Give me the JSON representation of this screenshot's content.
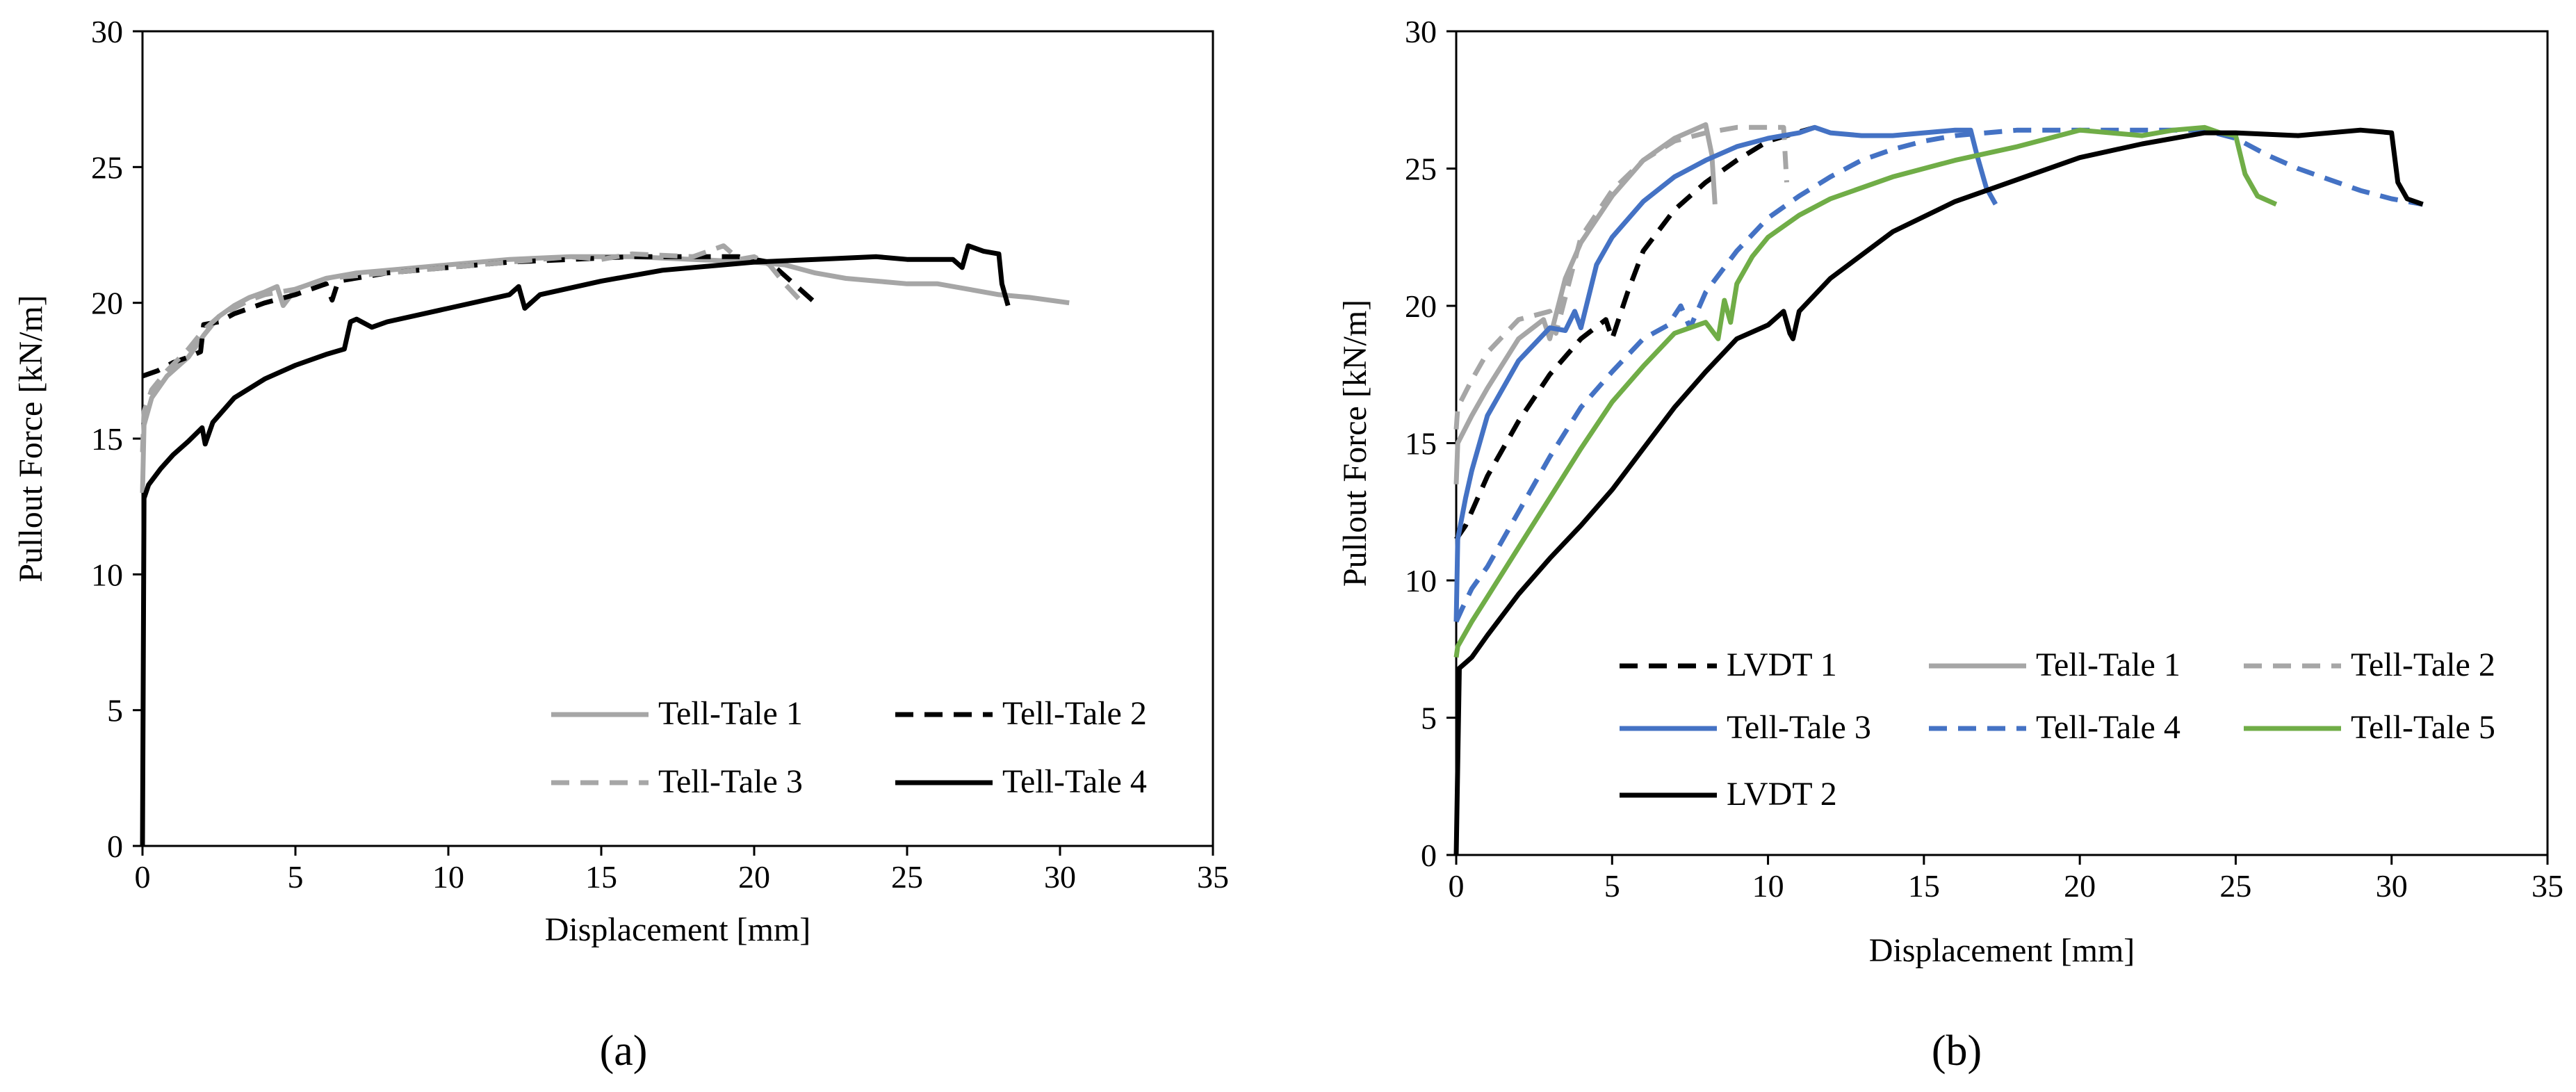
{
  "chart_data": [
    {
      "type": "line",
      "panel_label": "(a)",
      "xlabel": "Displacement [mm]",
      "ylabel": "Pullout Force [kN/m]",
      "xlim": [
        0,
        35
      ],
      "ylim": [
        0,
        30
      ],
      "xticks": [
        0,
        5,
        10,
        15,
        20,
        25,
        30,
        35
      ],
      "yticks": [
        0,
        5,
        10,
        15,
        20,
        25,
        30
      ],
      "legend_position": "bottom-right",
      "legend_columns": 2,
      "series": [
        {
          "name": "Tell-Tale 1",
          "color": "#a6a6a6",
          "dash": "solid",
          "x": [
            0,
            0.05,
            0.3,
            0.8,
            1.5,
            2,
            2.5,
            3,
            3.5,
            4,
            4.4,
            4.6,
            5,
            6,
            7,
            8,
            10,
            12,
            14,
            16,
            18,
            20,
            21,
            22,
            23,
            25,
            26,
            27,
            28,
            29,
            30.3
          ],
          "y": [
            13,
            15.5,
            16.5,
            17.3,
            18,
            18.8,
            19.5,
            19.9,
            20.2,
            20.4,
            20.6,
            19.9,
            20.5,
            20.9,
            21.1,
            21.2,
            21.4,
            21.6,
            21.7,
            21.7,
            21.6,
            21.5,
            21.4,
            21.1,
            20.9,
            20.7,
            20.7,
            20.5,
            20.3,
            20.2,
            20
          ]
        },
        {
          "name": "Tell-Tale 2",
          "color": "#000000",
          "dash": "dashed",
          "x": [
            0,
            0.5,
            1,
            1.5,
            1.9,
            2,
            2.5,
            3,
            4,
            5,
            6,
            6.2,
            6.4,
            8,
            10,
            12,
            14,
            16,
            18,
            19.5,
            20.5,
            21.5,
            22
          ],
          "y": [
            17.3,
            17.5,
            17.8,
            18,
            18.2,
            19.2,
            19.3,
            19.6,
            20,
            20.3,
            20.7,
            20.1,
            20.8,
            21.1,
            21.3,
            21.5,
            21.6,
            21.7,
            21.7,
            21.7,
            21.5,
            20.5,
            20
          ]
        },
        {
          "name": "Tell-Tale 3",
          "color": "#a6a6a6",
          "dash": "dashed",
          "x": [
            0,
            0.05,
            0.3,
            0.8,
            1.5,
            2,
            2.6,
            3,
            3.5,
            4,
            5,
            6,
            8,
            10,
            12,
            14,
            15,
            16,
            18,
            19,
            19.5,
            20,
            20.5,
            21,
            21.5
          ],
          "y": [
            14.5,
            16,
            16.8,
            17.5,
            18.3,
            19,
            19.6,
            19.8,
            20.1,
            20.3,
            20.5,
            20.9,
            21.1,
            21.3,
            21.5,
            21.7,
            21.6,
            21.8,
            21.7,
            22.1,
            21.6,
            21.7,
            21.4,
            20.7,
            20.1
          ]
        },
        {
          "name": "Tell-Tale 4",
          "color": "#000000",
          "dash": "solid",
          "x": [
            0,
            0.05,
            0.2,
            0.6,
            1,
            1.5,
            1.95,
            2.05,
            2.3,
            3,
            4,
            5,
            6,
            6.6,
            6.8,
            7,
            7.5,
            8,
            10,
            12,
            12.3,
            12.5,
            13,
            15,
            17,
            19,
            20,
            22,
            24,
            25,
            26,
            26.5,
            26.8,
            27,
            27.5,
            28,
            28.1,
            28.3
          ],
          "y": [
            0,
            12.8,
            13.3,
            13.9,
            14.4,
            14.9,
            15.4,
            14.8,
            15.6,
            16.5,
            17.2,
            17.7,
            18.1,
            18.3,
            19.3,
            19.4,
            19.1,
            19.3,
            19.8,
            20.3,
            20.6,
            19.8,
            20.3,
            20.8,
            21.2,
            21.4,
            21.5,
            21.6,
            21.7,
            21.6,
            21.6,
            21.6,
            21.3,
            22.1,
            21.9,
            21.8,
            20.7,
            19.9
          ]
        }
      ]
    },
    {
      "type": "line",
      "panel_label": "(b)",
      "xlabel": "Displacement [mm]",
      "ylabel": "Pullout Force [kN/m]",
      "xlim": [
        0,
        35
      ],
      "ylim": [
        0,
        30
      ],
      "xticks": [
        0,
        5,
        10,
        15,
        20,
        25,
        30,
        35
      ],
      "yticks": [
        0,
        5,
        10,
        15,
        20,
        25,
        30
      ],
      "legend_position": "bottom",
      "legend_columns": 3,
      "series": [
        {
          "name": "LVDT 1",
          "color": "#000000",
          "dash": "dashed",
          "x": [
            0,
            0.3,
            1,
            2,
            3,
            4,
            4.8,
            5,
            5.5,
            6,
            7,
            8,
            9,
            10,
            11.5
          ],
          "y": [
            11.5,
            12,
            13.8,
            15.8,
            17.5,
            18.8,
            19.5,
            18.8,
            20.5,
            22,
            23.5,
            24.5,
            25.3,
            26,
            26.5
          ]
        },
        {
          "name": "Tell-Tale 1",
          "color": "#a6a6a6",
          "dash": "solid",
          "x": [
            0,
            0.05,
            0.5,
            1,
            2,
            2.8,
            3,
            3.5,
            4,
            5,
            6,
            7,
            8,
            8.2,
            8.3
          ],
          "y": [
            13.5,
            15,
            16,
            17,
            18.8,
            19.5,
            18.8,
            21,
            22.3,
            24,
            25.3,
            26.1,
            26.6,
            25.5,
            23.7
          ]
        },
        {
          "name": "Tell-Tale 2",
          "color": "#a6a6a6",
          "dash": "dashed",
          "x": [
            0,
            0.05,
            0.5,
            1,
            2,
            3,
            3.2,
            4,
            5,
            6,
            7,
            8,
            8.5,
            9,
            10,
            10.5,
            10.6
          ],
          "y": [
            15.5,
            16.3,
            17.3,
            18.3,
            19.5,
            19.8,
            19,
            22.5,
            24.2,
            25.3,
            26,
            26.3,
            26.4,
            26.5,
            26.5,
            26.5,
            24.5
          ]
        },
        {
          "name": "Tell-Tale 3",
          "color": "#4472c4",
          "dash": "solid",
          "x": [
            0,
            0.05,
            0.3,
            0.5,
            1,
            2,
            3,
            3.5,
            3.8,
            4,
            4.5,
            5,
            6,
            7,
            8,
            9,
            10,
            11,
            11.5,
            12,
            13,
            14,
            15,
            16,
            16.5,
            16.7,
            17,
            17.3
          ],
          "y": [
            8.5,
            11.5,
            13,
            14,
            16,
            18,
            19.2,
            19.1,
            19.8,
            19.2,
            21.5,
            22.5,
            23.8,
            24.7,
            25.3,
            25.8,
            26.1,
            26.3,
            26.5,
            26.3,
            26.2,
            26.2,
            26.3,
            26.4,
            26.4,
            25.5,
            24.3,
            23.7
          ]
        },
        {
          "name": "Tell-Tale 4",
          "color": "#4472c4",
          "dash": "dashed",
          "x": [
            0,
            0.2,
            0.5,
            1,
            2,
            3,
            4,
            5,
            6,
            6.8,
            7.2,
            7.5,
            8,
            9,
            10,
            11,
            12,
            13,
            14,
            15,
            16,
            17,
            18,
            20,
            22,
            24,
            25,
            26,
            27,
            28,
            29,
            30,
            31
          ],
          "y": [
            8.5,
            9,
            9.7,
            10.5,
            12.5,
            14.5,
            16.3,
            17.6,
            18.8,
            19.3,
            20,
            19.2,
            20.5,
            22,
            23.2,
            24,
            24.7,
            25.3,
            25.7,
            26,
            26.2,
            26.3,
            26.4,
            26.4,
            26.4,
            26.4,
            26.1,
            25.5,
            25,
            24.6,
            24.2,
            23.9,
            23.7
          ]
        },
        {
          "name": "Tell-Tale 5",
          "color": "#70ad47",
          "dash": "solid",
          "x": [
            0,
            0.05,
            0.5,
            1,
            2,
            3,
            4,
            5,
            6,
            7,
            7.5,
            8,
            8.4,
            8.6,
            8.8,
            9,
            9.5,
            10,
            11,
            12,
            14,
            16,
            18,
            20,
            22,
            23,
            24,
            24.5,
            25,
            25.3,
            25.7,
            26.3
          ],
          "y": [
            7.2,
            7.6,
            8.5,
            9.4,
            11.2,
            13,
            14.8,
            16.5,
            17.8,
            19,
            19.2,
            19.4,
            18.8,
            20.2,
            19.4,
            20.8,
            21.8,
            22.5,
            23.3,
            23.9,
            24.7,
            25.3,
            25.8,
            26.4,
            26.2,
            26.4,
            26.5,
            26.3,
            26.2,
            24.8,
            24,
            23.7
          ]
        },
        {
          "name": "LVDT 2",
          "color": "#000000",
          "dash": "solid",
          "x": [
            0,
            0.1,
            0.3,
            0.5,
            1,
            2,
            3,
            4,
            5,
            6,
            7,
            8,
            9,
            10,
            10.5,
            10.7,
            10.8,
            11,
            12,
            14,
            16,
            18,
            20,
            22,
            24,
            25,
            27,
            29,
            30,
            30.2,
            30.5,
            31
          ],
          "y": [
            0,
            6.8,
            7,
            7.2,
            8,
            9.5,
            10.8,
            12,
            13.3,
            14.8,
            16.3,
            17.6,
            18.8,
            19.3,
            19.8,
            19,
            18.8,
            19.8,
            21,
            22.7,
            23.8,
            24.6,
            25.4,
            25.9,
            26.3,
            26.3,
            26.2,
            26.4,
            26.3,
            24.5,
            23.9,
            23.7
          ]
        }
      ]
    }
  ]
}
